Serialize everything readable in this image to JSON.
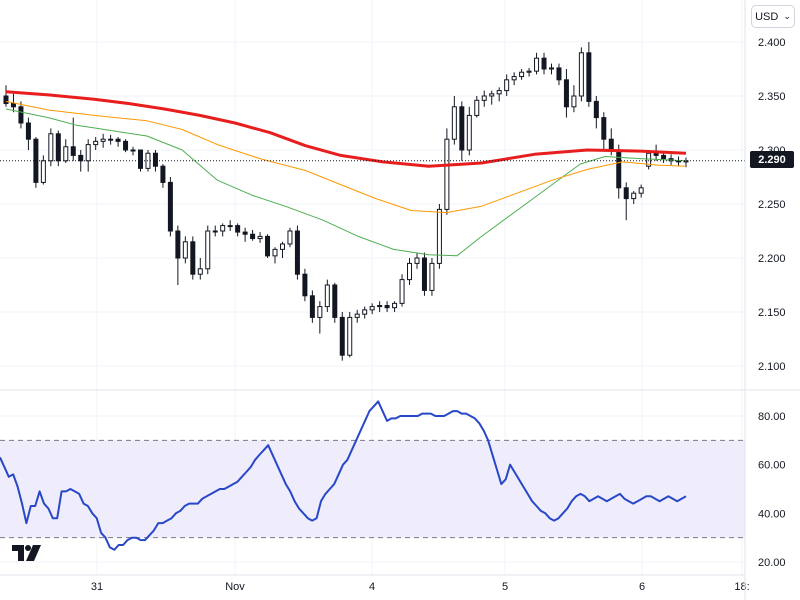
{
  "currency": {
    "label": "USD"
  },
  "last_price": {
    "label": "2.290",
    "value": 2.29
  },
  "colors": {
    "bull": "#131722",
    "bear": "#131722",
    "ma_long": "#e81e1e",
    "ma_mid": "#ff9800",
    "ma_short": "#4caf50",
    "rsi": "#2848c8",
    "rsi_band": "#efedfb"
  },
  "chart_data": [
    {
      "type": "candlestick",
      "title": "",
      "ylim": [
        2.09,
        2.42
      ],
      "yticks": [
        "2.400",
        "2.350",
        "2.300",
        "2.250",
        "2.200",
        "2.150",
        "2.100"
      ],
      "xticks": [
        "31",
        "Nov",
        "4",
        "5",
        "6",
        "18:"
      ],
      "grid": true,
      "candles": [
        [
          2.35,
          2.36,
          2.34,
          2.343
        ],
        [
          2.343,
          2.352,
          2.335,
          2.34
        ],
        [
          2.34,
          2.345,
          2.32,
          2.325
        ],
        [
          2.325,
          2.33,
          2.3,
          2.31
        ],
        [
          2.31,
          2.312,
          2.265,
          2.27
        ],
        [
          2.27,
          2.295,
          2.268,
          2.29
        ],
        [
          2.29,
          2.32,
          2.285,
          2.315
        ],
        [
          2.315,
          2.318,
          2.285,
          2.29
        ],
        [
          2.29,
          2.31,
          2.288,
          2.303
        ],
        [
          2.303,
          2.33,
          2.29,
          2.295
        ],
        [
          2.295,
          2.3,
          2.28,
          2.29
        ],
        [
          2.29,
          2.31,
          2.28,
          2.305
        ],
        [
          2.305,
          2.312,
          2.3,
          2.308
        ],
        [
          2.308,
          2.315,
          2.302,
          2.31
        ],
        [
          2.31,
          2.314,
          2.305,
          2.31
        ],
        [
          2.31,
          2.312,
          2.303,
          2.308
        ],
        [
          2.308,
          2.31,
          2.298,
          2.3
        ],
        [
          2.3,
          2.303,
          2.295,
          2.3
        ],
        [
          2.3,
          2.3,
          2.28,
          2.283
        ],
        [
          2.283,
          2.3,
          2.28,
          2.297
        ],
        [
          2.297,
          2.3,
          2.28,
          2.285
        ],
        [
          2.285,
          2.287,
          2.265,
          2.27
        ],
        [
          2.27,
          2.275,
          2.22,
          2.225
        ],
        [
          2.225,
          2.23,
          2.175,
          2.2
        ],
        [
          2.2,
          2.22,
          2.195,
          2.215
        ],
        [
          2.215,
          2.22,
          2.18,
          2.185
        ],
        [
          2.185,
          2.2,
          2.18,
          2.19
        ],
        [
          2.19,
          2.23,
          2.185,
          2.225
        ],
        [
          2.225,
          2.23,
          2.22,
          2.225
        ],
        [
          2.225,
          2.232,
          2.22,
          2.23
        ],
        [
          2.23,
          2.235,
          2.225,
          2.23
        ],
        [
          2.23,
          2.232,
          2.22,
          2.224
        ],
        [
          2.224,
          2.228,
          2.215,
          2.222
        ],
        [
          2.222,
          2.226,
          2.216,
          2.218
        ],
        [
          2.218,
          2.224,
          2.214,
          2.22
        ],
        [
          2.22,
          2.222,
          2.2,
          2.202
        ],
        [
          2.202,
          2.21,
          2.195,
          2.208
        ],
        [
          2.208,
          2.215,
          2.2,
          2.213
        ],
        [
          2.213,
          2.228,
          2.21,
          2.225
        ],
        [
          2.225,
          2.23,
          2.18,
          2.185
        ],
        [
          2.185,
          2.19,
          2.16,
          2.165
        ],
        [
          2.165,
          2.17,
          2.14,
          2.145
        ],
        [
          2.145,
          2.16,
          2.13,
          2.155
        ],
        [
          2.155,
          2.18,
          2.15,
          2.175
        ],
        [
          2.175,
          2.177,
          2.14,
          2.145
        ],
        [
          2.145,
          2.15,
          2.105,
          2.11
        ],
        [
          2.11,
          2.15,
          2.108,
          2.145
        ],
        [
          2.145,
          2.152,
          2.14,
          2.148
        ],
        [
          2.148,
          2.155,
          2.144,
          2.152
        ],
        [
          2.152,
          2.158,
          2.148,
          2.155
        ],
        [
          2.155,
          2.16,
          2.15,
          2.156
        ],
        [
          2.156,
          2.16,
          2.15,
          2.154
        ],
        [
          2.154,
          2.16,
          2.15,
          2.158
        ],
        [
          2.158,
          2.185,
          2.155,
          2.18
        ],
        [
          2.18,
          2.2,
          2.175,
          2.195
        ],
        [
          2.195,
          2.205,
          2.19,
          2.2
        ],
        [
          2.2,
          2.205,
          2.165,
          2.17
        ],
        [
          2.17,
          2.2,
          2.165,
          2.195
        ],
        [
          2.195,
          2.25,
          2.19,
          2.245
        ],
        [
          2.245,
          2.32,
          2.24,
          2.31
        ],
        [
          2.31,
          2.35,
          2.305,
          2.34
        ],
        [
          2.34,
          2.345,
          2.29,
          2.3
        ],
        [
          2.3,
          2.34,
          2.295,
          2.332
        ],
        [
          2.332,
          2.35,
          2.33,
          2.346
        ],
        [
          2.346,
          2.355,
          2.34,
          2.35
        ],
        [
          2.35,
          2.355,
          2.342,
          2.352
        ],
        [
          2.352,
          2.358,
          2.345,
          2.355
        ],
        [
          2.355,
          2.37,
          2.35,
          2.365
        ],
        [
          2.365,
          2.372,
          2.36,
          2.368
        ],
        [
          2.368,
          2.375,
          2.365,
          2.372
        ],
        [
          2.372,
          2.376,
          2.368,
          2.373
        ],
        [
          2.373,
          2.39,
          2.37,
          2.385
        ],
        [
          2.385,
          2.39,
          2.37,
          2.375
        ],
        [
          2.375,
          2.38,
          2.37,
          2.376
        ],
        [
          2.376,
          2.38,
          2.36,
          2.365
        ],
        [
          2.365,
          2.375,
          2.33,
          2.34
        ],
        [
          2.34,
          2.36,
          2.335,
          2.35
        ],
        [
          2.35,
          2.395,
          2.345,
          2.39
        ],
        [
          2.39,
          2.4,
          2.34,
          2.345
        ],
        [
          2.345,
          2.35,
          2.32,
          2.33
        ],
        [
          2.33,
          2.335,
          2.3,
          2.31
        ],
        [
          2.31,
          2.32,
          2.295,
          2.3
        ],
        [
          2.3,
          2.305,
          2.255,
          2.265
        ],
        [
          2.265,
          2.27,
          2.235,
          2.255
        ],
        [
          2.255,
          2.262,
          2.25,
          2.26
        ],
        [
          2.26,
          2.268,
          2.256,
          2.265
        ],
        [
          2.285,
          2.3,
          2.282,
          2.297
        ],
        [
          2.297,
          2.305,
          2.29,
          2.295
        ],
        [
          2.295,
          2.298,
          2.288,
          2.292
        ],
        [
          2.292,
          2.296,
          2.286,
          2.29
        ],
        [
          2.29,
          2.294,
          2.285,
          2.289
        ],
        [
          2.289,
          2.293,
          2.284,
          2.29
        ]
      ],
      "ma_long": [
        [
          0,
          2.354
        ],
        [
          12,
          2.351
        ],
        [
          25,
          2.347
        ],
        [
          35,
          2.343
        ],
        [
          45,
          2.338
        ],
        [
          55,
          2.332
        ],
        [
          65,
          2.325
        ],
        [
          75,
          2.316
        ],
        [
          85,
          2.304
        ],
        [
          95,
          2.295
        ],
        [
          107,
          2.289
        ],
        [
          120,
          2.285
        ],
        [
          135,
          2.288
        ],
        [
          150,
          2.296
        ],
        [
          165,
          2.3
        ],
        [
          180,
          2.299
        ],
        [
          193,
          2.297
        ]
      ],
      "ma_mid": [
        [
          0,
          2.345
        ],
        [
          12,
          2.337
        ],
        [
          25,
          2.332
        ],
        [
          40,
          2.327
        ],
        [
          50,
          2.319
        ],
        [
          60,
          2.305
        ],
        [
          72,
          2.292
        ],
        [
          85,
          2.281
        ],
        [
          95,
          2.268
        ],
        [
          105,
          2.255
        ],
        [
          115,
          2.244
        ],
        [
          125,
          2.242
        ],
        [
          135,
          2.248
        ],
        [
          145,
          2.26
        ],
        [
          155,
          2.272
        ],
        [
          165,
          2.282
        ],
        [
          175,
          2.289
        ],
        [
          185,
          2.286
        ],
        [
          193,
          2.285
        ]
      ],
      "ma_short": [
        [
          0,
          2.338
        ],
        [
          12,
          2.33
        ],
        [
          20,
          2.323
        ],
        [
          30,
          2.318
        ],
        [
          40,
          2.313
        ],
        [
          50,
          2.3
        ],
        [
          60,
          2.272
        ],
        [
          70,
          2.258
        ],
        [
          80,
          2.247
        ],
        [
          90,
          2.235
        ],
        [
          100,
          2.22
        ],
        [
          110,
          2.208
        ],
        [
          120,
          2.203
        ],
        [
          128,
          2.202
        ],
        [
          135,
          2.22
        ],
        [
          145,
          2.244
        ],
        [
          155,
          2.268
        ],
        [
          163,
          2.287
        ],
        [
          170,
          2.294
        ],
        [
          180,
          2.292
        ],
        [
          193,
          2.29
        ]
      ]
    },
    {
      "type": "line",
      "title": "",
      "ylim": [
        18,
        88
      ],
      "yticks": [
        "80.00",
        "60.00",
        "40.00",
        "20.00"
      ],
      "band": [
        30,
        70
      ],
      "values": [
        63,
        59,
        55,
        56,
        51,
        44,
        36,
        43,
        43,
        49,
        44,
        42,
        38,
        38,
        49,
        49,
        50,
        49,
        48,
        44,
        43,
        40,
        38,
        32,
        30,
        26,
        25,
        27,
        27,
        29,
        30,
        30,
        29,
        29,
        31,
        33,
        36,
        36,
        37,
        38,
        40,
        41,
        43,
        44,
        44,
        44,
        46,
        47,
        48,
        49,
        50,
        50,
        51,
        52,
        53,
        55,
        57,
        59,
        62,
        64,
        66,
        68,
        64,
        60,
        56,
        52,
        49,
        45,
        42,
        40,
        38,
        37,
        38,
        45,
        48,
        50,
        52,
        56,
        60,
        62,
        66,
        70,
        74,
        78,
        82,
        84,
        86,
        82,
        78,
        79,
        79,
        80,
        80,
        80,
        80,
        80,
        81,
        81,
        81,
        80,
        80,
        80,
        81,
        82,
        82,
        81,
        81,
        80,
        79,
        77,
        74,
        70,
        64,
        58,
        52,
        54,
        60,
        57,
        54,
        51,
        48,
        45,
        43,
        41,
        40,
        38,
        37,
        38,
        40,
        42,
        45,
        47,
        48,
        47,
        45,
        46,
        47,
        46,
        45,
        46,
        47,
        48,
        46,
        45,
        44,
        45,
        46,
        47,
        47,
        46,
        45,
        46,
        47,
        46,
        45,
        46,
        47
      ]
    }
  ]
}
